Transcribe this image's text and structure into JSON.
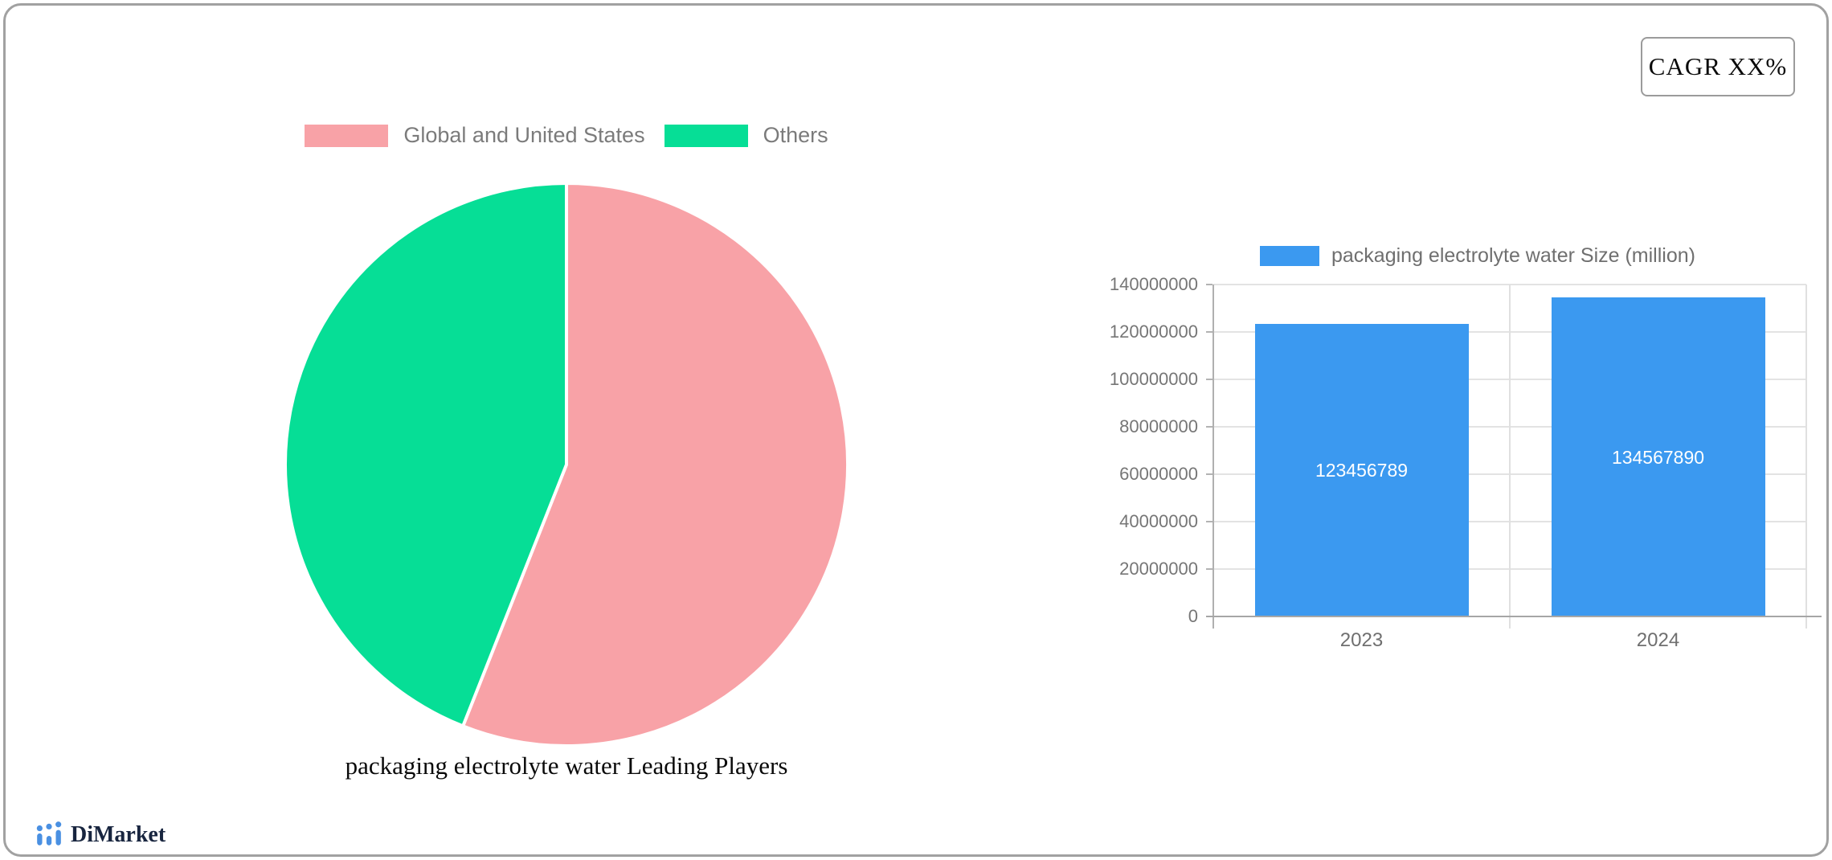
{
  "header": {
    "cagr_label": "CAGR XX%"
  },
  "branding": {
    "logo_text": "DiMarket",
    "logo_icon": "bar-chart-logo-icon",
    "logo_icon_color": "#4a90e2",
    "logo_text_color": "#18253f"
  },
  "chart_data": [
    {
      "type": "pie",
      "title": "packaging electrolyte water Leading Players",
      "legend_position": "top",
      "start_angle_deg": 0,
      "unit": "percent_share_estimated",
      "series": [
        {
          "name": "Global and United States",
          "value": 56,
          "color": "#F8A2A7"
        },
        {
          "name": "Others",
          "value": 44,
          "color": "#06DE96"
        }
      ]
    },
    {
      "type": "bar",
      "categories": [
        "2023",
        "2024"
      ],
      "series": [
        {
          "name": "packaging electrolyte water Size (million)",
          "values": [
            123456789,
            134567890
          ],
          "color": "#3B99F0"
        }
      ],
      "bar_labels": [
        "123456789",
        "134567890"
      ],
      "label_color": "#ffffff",
      "xlabel": "",
      "ylabel": "",
      "ylim": [
        0,
        140000000
      ],
      "ytick_step": 20000000,
      "yticks": [
        0,
        20000000,
        40000000,
        60000000,
        80000000,
        100000000,
        120000000,
        140000000
      ],
      "grid": true,
      "legend_position": "top"
    }
  ]
}
